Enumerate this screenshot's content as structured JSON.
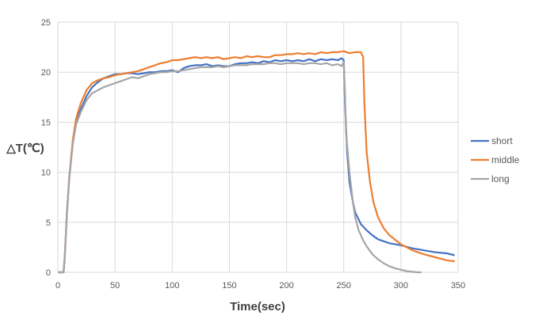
{
  "chart_data": {
    "type": "line",
    "xlabel": "Time(sec)",
    "ylabel": "△T(℃)",
    "xlim": [
      0,
      350
    ],
    "ylim": [
      0,
      25
    ],
    "xticks": [
      0,
      50,
      100,
      150,
      200,
      250,
      300,
      350
    ],
    "yticks": [
      0,
      5,
      10,
      15,
      20,
      25
    ],
    "grid": true,
    "legend_position": "right",
    "series": [
      {
        "name": "short",
        "color": "#4472C4",
        "x": [
          0,
          5,
          6,
          8,
          10,
          13,
          16,
          20,
          25,
          30,
          35,
          40,
          45,
          50,
          55,
          60,
          65,
          70,
          75,
          80,
          85,
          90,
          95,
          100,
          105,
          110,
          115,
          120,
          125,
          130,
          135,
          140,
          145,
          150,
          155,
          160,
          165,
          170,
          175,
          180,
          185,
          190,
          195,
          200,
          205,
          210,
          215,
          220,
          225,
          230,
          235,
          240,
          245,
          248,
          250,
          251,
          253,
          255,
          258,
          260,
          265,
          270,
          275,
          280,
          285,
          290,
          295,
          300,
          310,
          320,
          330,
          340,
          347
        ],
        "y": [
          0,
          0,
          1.5,
          6,
          9.5,
          13,
          15,
          16.3,
          17.6,
          18.5,
          19.0,
          19.4,
          19.6,
          19.8,
          19.8,
          19.9,
          19.9,
          19.8,
          19.9,
          20.0,
          20.0,
          20.1,
          20.1,
          20.2,
          20.0,
          20.4,
          20.6,
          20.7,
          20.7,
          20.8,
          20.6,
          20.7,
          20.6,
          20.6,
          20.8,
          20.9,
          20.9,
          21.0,
          20.9,
          21.1,
          21.0,
          21.2,
          21.1,
          21.2,
          21.1,
          21.2,
          21.1,
          21.3,
          21.1,
          21.3,
          21.2,
          21.3,
          21.2,
          21.4,
          21.2,
          17,
          12,
          9,
          7,
          6,
          4.8,
          4.2,
          3.7,
          3.3,
          3.1,
          2.9,
          2.8,
          2.7,
          2.4,
          2.2,
          2.0,
          1.9,
          1.7
        ]
      },
      {
        "name": "middle",
        "color": "#ED7D31",
        "x": [
          0,
          5,
          6,
          8,
          10,
          13,
          16,
          20,
          25,
          30,
          35,
          40,
          45,
          50,
          55,
          60,
          65,
          70,
          75,
          80,
          85,
          90,
          95,
          100,
          105,
          110,
          115,
          120,
          125,
          130,
          135,
          140,
          145,
          150,
          155,
          160,
          165,
          170,
          175,
          180,
          185,
          190,
          195,
          200,
          205,
          210,
          215,
          220,
          225,
          230,
          235,
          240,
          245,
          250,
          255,
          260,
          265,
          267,
          268,
          270,
          273,
          276,
          280,
          285,
          290,
          300,
          310,
          320,
          330,
          340,
          347
        ],
        "y": [
          0,
          0,
          1.5,
          6,
          9.5,
          13.2,
          15.4,
          16.9,
          18.2,
          18.9,
          19.2,
          19.4,
          19.5,
          19.7,
          19.8,
          19.9,
          20.0,
          20.1,
          20.3,
          20.5,
          20.7,
          20.9,
          21.0,
          21.2,
          21.2,
          21.3,
          21.4,
          21.5,
          21.4,
          21.5,
          21.4,
          21.5,
          21.3,
          21.4,
          21.5,
          21.4,
          21.6,
          21.5,
          21.6,
          21.5,
          21.5,
          21.7,
          21.7,
          21.8,
          21.8,
          21.9,
          21.8,
          21.9,
          21.8,
          22.0,
          21.9,
          22.0,
          22.0,
          22.1,
          21.9,
          22.0,
          22.0,
          21.5,
          17,
          12,
          9,
          7,
          5.5,
          4.4,
          3.7,
          2.8,
          2.2,
          1.8,
          1.5,
          1.2,
          1.1
        ]
      },
      {
        "name": "long",
        "color": "#A5A5A5",
        "x": [
          0,
          5,
          6,
          8,
          10,
          13,
          16,
          20,
          25,
          30,
          35,
          40,
          45,
          50,
          55,
          60,
          65,
          70,
          75,
          80,
          85,
          90,
          95,
          100,
          105,
          110,
          115,
          120,
          125,
          130,
          135,
          140,
          145,
          150,
          155,
          160,
          165,
          170,
          175,
          180,
          185,
          190,
          195,
          200,
          205,
          210,
          215,
          220,
          225,
          230,
          235,
          240,
          245,
          248,
          250,
          251,
          252,
          255,
          258,
          260,
          263,
          267,
          270,
          275,
          280,
          285,
          290,
          295,
          300,
          305,
          310,
          315,
          318
        ],
        "y": [
          0,
          0,
          1.5,
          6,
          9.3,
          12.8,
          14.8,
          16.0,
          17.2,
          17.9,
          18.2,
          18.5,
          18.7,
          18.9,
          19.1,
          19.3,
          19.5,
          19.4,
          19.6,
          19.8,
          19.9,
          20.0,
          20.0,
          20.1,
          20.1,
          20.2,
          20.3,
          20.4,
          20.5,
          20.5,
          20.5,
          20.6,
          20.5,
          20.6,
          20.7,
          20.7,
          20.7,
          20.8,
          20.8,
          20.8,
          20.9,
          20.9,
          20.8,
          20.9,
          20.9,
          20.9,
          20.8,
          20.9,
          20.9,
          20.8,
          20.9,
          20.7,
          20.8,
          20.6,
          21.0,
          18,
          14,
          10,
          7,
          5.5,
          4.2,
          3.2,
          2.6,
          1.8,
          1.3,
          0.9,
          0.6,
          0.4,
          0.25,
          0.12,
          0.05,
          0,
          0
        ]
      }
    ]
  }
}
